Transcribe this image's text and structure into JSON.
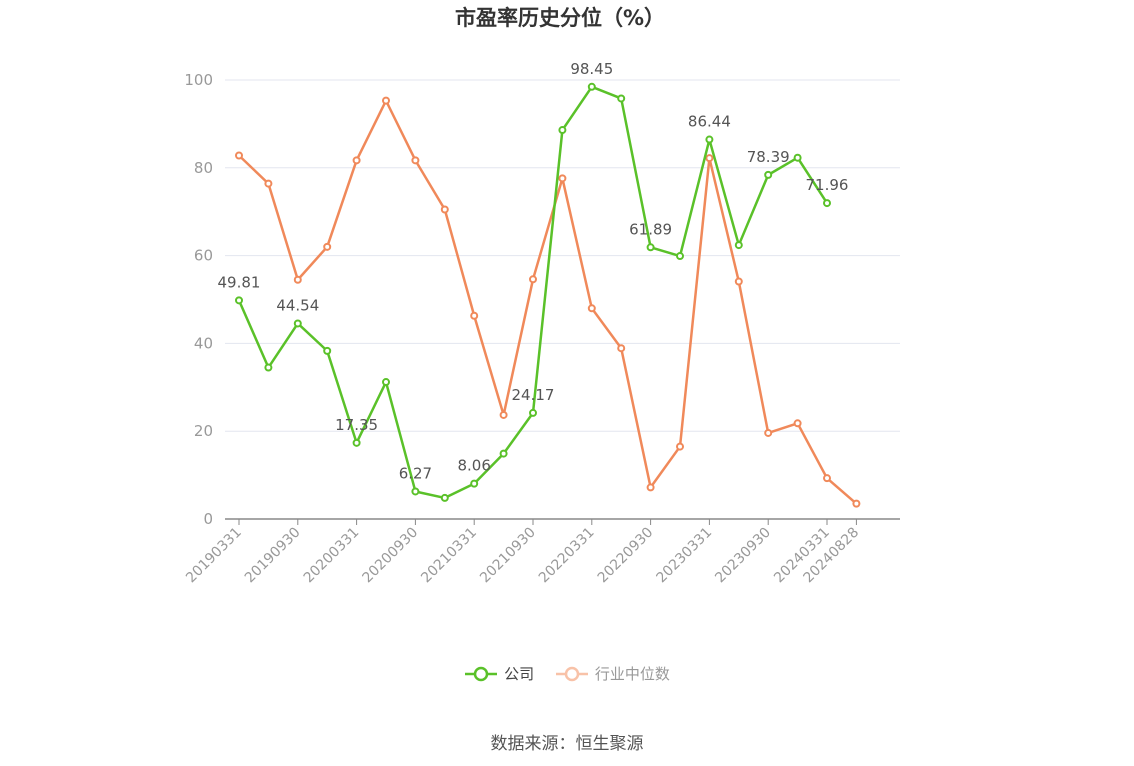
{
  "chart_data": {
    "type": "line",
    "title": "市盈率历史分位（%）",
    "xlabel": "",
    "ylabel": "",
    "ylim": [
      0,
      100
    ],
    "yticks": [
      0,
      20,
      40,
      60,
      80,
      100
    ],
    "grid": true,
    "legend_position": "bottom",
    "x": [
      "20190331",
      "20190630",
      "20190930",
      "20191231",
      "20200331",
      "20200630",
      "20200930",
      "20201231",
      "20210331",
      "20210630",
      "20210930",
      "20211231",
      "20220331",
      "20220630",
      "20220930",
      "20221231",
      "20230331",
      "20230630",
      "20230930",
      "20231231",
      "20240331",
      "20240828"
    ],
    "x_tick_labels": [
      "20190331",
      "20190930",
      "20200331",
      "20200930",
      "20210331",
      "20210930",
      "20220331",
      "20220930",
      "20230331",
      "20230930",
      "20240331",
      "20240828"
    ],
    "series": [
      {
        "name": "公司",
        "color": "#5ac129",
        "values": [
          49.81,
          34.5,
          44.54,
          38.3,
          17.35,
          31.2,
          6.27,
          4.8,
          8.06,
          14.9,
          24.17,
          88.6,
          98.45,
          95.8,
          61.89,
          59.9,
          86.44,
          62.4,
          78.39,
          82.3,
          71.96,
          null
        ],
        "point_labels": [
          {
            "index": 0,
            "text": "49.81"
          },
          {
            "index": 2,
            "text": "44.54"
          },
          {
            "index": 4,
            "text": "17.35"
          },
          {
            "index": 6,
            "text": "6.27"
          },
          {
            "index": 8,
            "text": "8.06"
          },
          {
            "index": 10,
            "text": "24.17"
          },
          {
            "index": 12,
            "text": "98.45"
          },
          {
            "index": 14,
            "text": "61.89"
          },
          {
            "index": 16,
            "text": "86.44"
          },
          {
            "index": 18,
            "text": "78.39"
          },
          {
            "index": 20,
            "text": "71.96"
          }
        ]
      },
      {
        "name": "行业中位数",
        "color": "#f0895a",
        "values": [
          82.8,
          76.4,
          54.5,
          62.0,
          81.7,
          95.3,
          81.7,
          70.5,
          46.3,
          23.7,
          54.6,
          77.6,
          48.0,
          38.9,
          7.2,
          16.5,
          82.2,
          54.1,
          19.6,
          21.8,
          9.3,
          3.5
        ]
      }
    ]
  },
  "source": "数据来源：恒生聚源"
}
